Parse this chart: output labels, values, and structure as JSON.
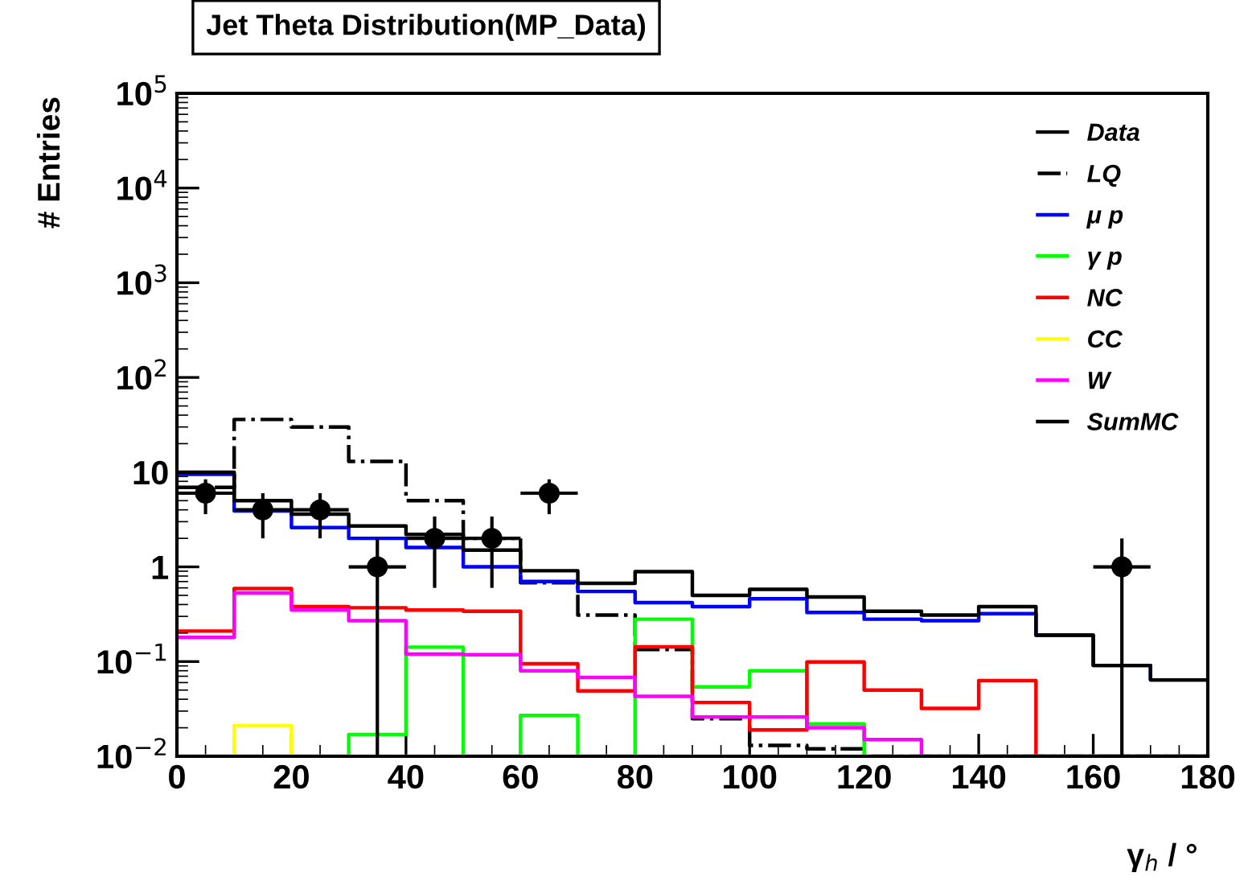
{
  "chart_data": {
    "type": "histogram",
    "title": "Jet Theta Distribution(MP_Data)",
    "xlabel": "γ$_{h}$ / °",
    "ylabel": "# Entries",
    "bins": [
      0,
      10,
      20,
      30,
      40,
      50,
      60,
      70,
      80,
      90,
      100,
      110,
      120,
      130,
      140,
      150,
      160,
      170,
      180
    ],
    "series": [
      {
        "name": "Data",
        "type": "scatter",
        "color": "#000000",
        "marker": "circle",
        "x": [
          5,
          15,
          25,
          35,
          45,
          55,
          65,
          165
        ],
        "values": [
          6,
          4,
          4,
          1,
          2,
          2,
          6,
          1
        ],
        "errors": [
          2.4,
          2,
          2,
          [
            0.01,
            2
          ],
          1.4,
          1.4,
          2.4,
          [
            0.01,
            2
          ]
        ],
        "xerrors": [
          5,
          5,
          5,
          5,
          5,
          5,
          5,
          5
        ]
      },
      {
        "name": "LQ",
        "color": "#000000",
        "line_style": "dashdot",
        "values": [
          6.9,
          36,
          30,
          13,
          5.0,
          2.0,
          0.68,
          0.31,
          0.134,
          0.025,
          0.013,
          0.012,
          null,
          null,
          null,
          null,
          null,
          null
        ]
      },
      {
        "name": "μ p",
        "color": "#0000ff",
        "values": [
          9.5,
          3.9,
          2.6,
          2.0,
          1.6,
          1.0,
          0.7,
          0.55,
          0.42,
          0.38,
          0.46,
          0.33,
          0.28,
          0.27,
          0.32,
          0.19,
          0.091,
          0.064
        ]
      },
      {
        "name": "γ p",
        "color": "#00ff00",
        "values": [
          null,
          null,
          null,
          0.017,
          0.142,
          null,
          0.027,
          null,
          0.28,
          0.054,
          0.08,
          0.022,
          null,
          null,
          null,
          null,
          null,
          null
        ]
      },
      {
        "name": "NC",
        "color": "#ff0000",
        "values": [
          0.21,
          0.59,
          0.38,
          0.37,
          0.35,
          0.34,
          0.095,
          0.049,
          0.143,
          0.037,
          0.019,
          0.099,
          0.05,
          0.032,
          0.063,
          null,
          null,
          null
        ]
      },
      {
        "name": "CC",
        "color": "#ffff00",
        "values": [
          null,
          0.021,
          null,
          null,
          null,
          null,
          null,
          null,
          null,
          null,
          null,
          null,
          null,
          null,
          null,
          null,
          null,
          null
        ]
      },
      {
        "name": "W",
        "color": "#ff00ff",
        "values": [
          0.18,
          0.53,
          0.35,
          0.27,
          0.12,
          0.118,
          0.08,
          0.068,
          0.043,
          0.026,
          0.026,
          0.02,
          0.015,
          null,
          null,
          null,
          null,
          null
        ]
      },
      {
        "name": "SumMC",
        "color": "#000000",
        "values": [
          10,
          5.0,
          3.6,
          2.7,
          2.2,
          1.5,
          0.91,
          0.67,
          0.89,
          0.5,
          0.58,
          0.48,
          0.34,
          0.31,
          0.38,
          0.19,
          0.091,
          0.064
        ]
      }
    ],
    "log": "y",
    "xlim": [
      0,
      180
    ],
    "xticks": [
      0,
      20,
      40,
      60,
      80,
      100,
      120,
      140,
      160,
      180
    ],
    "ylim": [
      0.01,
      100000
    ],
    "yticks": [
      {
        "value": 0.01,
        "label": "10$^{−2}$"
      },
      {
        "value": 0.1,
        "label": "10$^{−1}$"
      },
      {
        "value": 1,
        "label": "1"
      },
      {
        "value": 10,
        "label": "10"
      },
      {
        "value": 100,
        "label": "10$^{2}$"
      },
      {
        "value": 1000,
        "label": "10$^{3}$"
      },
      {
        "value": 10000,
        "label": "10$^{4}$"
      },
      {
        "value": 100000,
        "label": "10$^{5}$"
      }
    ],
    "grid": false,
    "legend": "top right"
  }
}
